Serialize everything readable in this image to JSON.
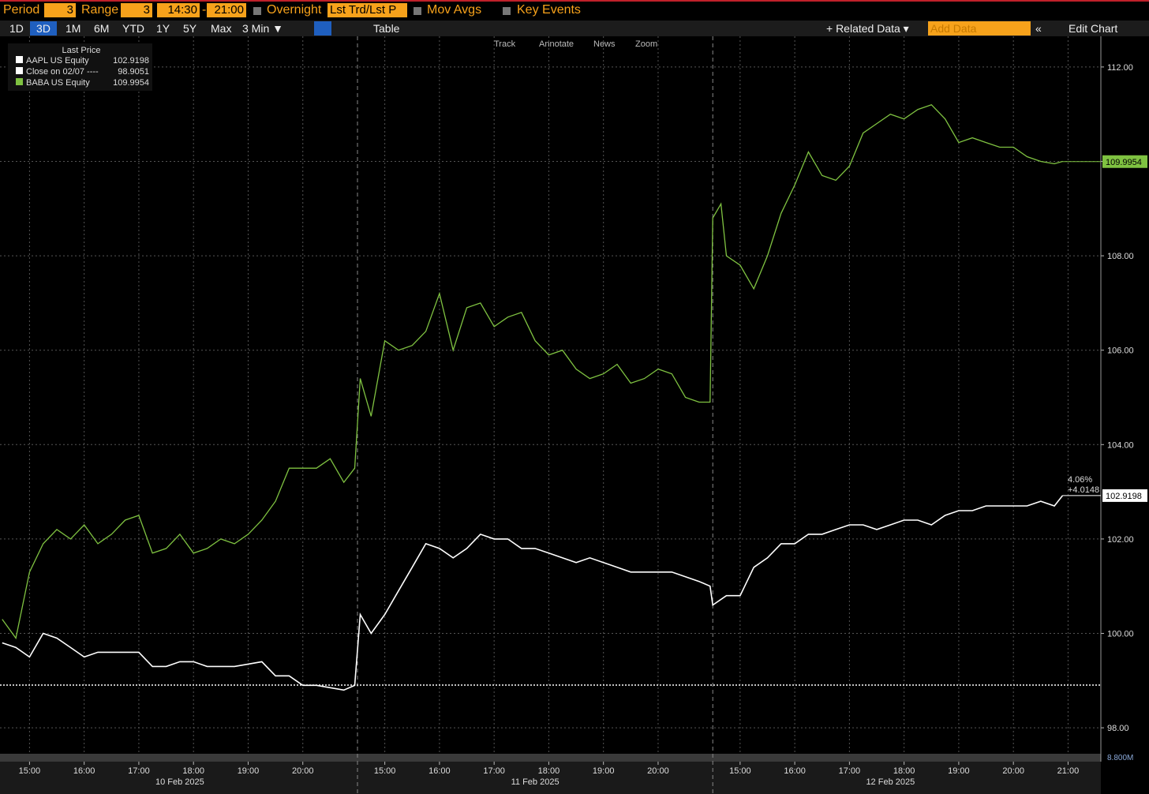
{
  "ui": {
    "period_label": "Period",
    "period_value": "3",
    "range_label": "Range",
    "range_value": "3",
    "time_from": "14:30",
    "time_sep": "-",
    "time_to": "21:00",
    "overnight": "Overnight",
    "price_mode": "Lst Trd/Lst P",
    "mov_avgs": "Mov Avgs",
    "key_events": "Key Events",
    "ranges": [
      "1D",
      "3D",
      "1M",
      "6M",
      "YTD",
      "1Y",
      "5Y",
      "Max"
    ],
    "interval": "3 Min ▼",
    "table": "Table",
    "related": "+ Related Data ▾",
    "add_data": "Add Data",
    "collapse": "«",
    "edit_chart": "Edit Chart",
    "tools": [
      "Track",
      "Annotate",
      "News",
      "Zoom"
    ],
    "legend_title": "Last Price"
  },
  "chart_data": {
    "type": "line",
    "xlim": [
      -0.04,
      20.1
    ],
    "ylim": [
      97.45,
      112.65
    ],
    "yticks": [
      {
        "value": 98,
        "label": "98.00"
      },
      {
        "value": 100,
        "label": "100.00"
      },
      {
        "value": 102,
        "label": "102.00"
      },
      {
        "value": 104,
        "label": "104.00"
      },
      {
        "value": 106,
        "label": "106.00"
      },
      {
        "value": 108,
        "label": "108.00"
      },
      {
        "value": 110,
        "label": "110.00"
      },
      {
        "value": 112,
        "label": "112.00"
      }
    ],
    "xticks": [
      {
        "value": 0.5,
        "label": "15:00"
      },
      {
        "value": 1.5,
        "label": "16:00"
      },
      {
        "value": 2.5,
        "label": "17:00"
      },
      {
        "value": 3.5,
        "label": "18:00"
      },
      {
        "value": 4.5,
        "label": "19:00"
      },
      {
        "value": 5.5,
        "label": "20:00"
      },
      {
        "value": 7,
        "label": "15:00"
      },
      {
        "value": 8,
        "label": "16:00"
      },
      {
        "value": 9,
        "label": "17:00"
      },
      {
        "value": 10,
        "label": "18:00"
      },
      {
        "value": 11,
        "label": "19:00"
      },
      {
        "value": 12,
        "label": "20:00"
      },
      {
        "value": 13.5,
        "label": "15:00"
      },
      {
        "value": 14.5,
        "label": "16:00"
      },
      {
        "value": 15.5,
        "label": "17:00"
      },
      {
        "value": 16.5,
        "label": "18:00"
      },
      {
        "value": 17.5,
        "label": "19:00"
      },
      {
        "value": 18.5,
        "label": "20:00"
      },
      {
        "value": 19.5,
        "label": "21:00"
      }
    ],
    "date_labels": [
      {
        "value": 3.25,
        "label": "10 Feb 2025"
      },
      {
        "value": 9.75,
        "label": "11 Feb 2025"
      },
      {
        "value": 16.25,
        "label": "12 Feb 2025"
      }
    ],
    "session_breaks": [
      6.5,
      13
    ],
    "grid": true,
    "series": [
      {
        "name": "AAPL US Equity",
        "color": "#ffffff",
        "last": 102.9198,
        "x": [
          0,
          0.25,
          0.5,
          0.75,
          1,
          1.25,
          1.5,
          1.75,
          2,
          2.25,
          2.5,
          2.75,
          3,
          3.25,
          3.5,
          3.75,
          4,
          4.25,
          4.5,
          4.75,
          5,
          5.25,
          5.5,
          5.75,
          6,
          6.25,
          6.45,
          6.55,
          6.75,
          7,
          7.25,
          7.5,
          7.75,
          8,
          8.25,
          8.5,
          8.75,
          9,
          9.25,
          9.5,
          9.75,
          10,
          10.25,
          10.5,
          10.75,
          11,
          11.25,
          11.5,
          11.75,
          12,
          12.25,
          12.5,
          12.75,
          12.95,
          13,
          13.25,
          13.5,
          13.75,
          14,
          14.25,
          14.5,
          14.75,
          15,
          15.25,
          15.5,
          15.75,
          16,
          16.25,
          16.5,
          16.75,
          17,
          17.25,
          17.5,
          17.75,
          18,
          18.25,
          18.5,
          18.75,
          19,
          19.25,
          19.4
        ],
        "values": [
          99.8,
          99.7,
          99.5,
          100,
          99.9,
          99.7,
          99.5,
          99.6,
          99.6,
          99.6,
          99.6,
          99.3,
          99.3,
          99.4,
          99.4,
          99.3,
          99.3,
          99.3,
          99.35,
          99.4,
          99.1,
          99.1,
          98.9,
          98.9,
          98.85,
          98.8,
          98.9,
          100.4,
          100,
          100.4,
          100.9,
          101.4,
          101.9,
          101.8,
          101.6,
          101.8,
          102.1,
          102,
          102,
          101.8,
          101.8,
          101.7,
          101.6,
          101.5,
          101.6,
          101.5,
          101.4,
          101.3,
          101.3,
          101.3,
          101.3,
          101.2,
          101.1,
          101,
          100.6,
          100.8,
          100.8,
          101.4,
          101.6,
          101.9,
          101.9,
          102.1,
          102.1,
          102.2,
          102.3,
          102.3,
          102.2,
          102.3,
          102.4,
          102.4,
          102.3,
          102.5,
          102.6,
          102.6,
          102.7,
          102.7,
          102.7,
          102.7,
          102.8,
          102.7,
          102.92
        ]
      },
      {
        "name": "BABA US Equity",
        "color": "#7fc241",
        "last": 109.9954,
        "x": [
          0,
          0.25,
          0.5,
          0.75,
          1,
          1.25,
          1.5,
          1.75,
          2,
          2.25,
          2.5,
          2.75,
          3,
          3.25,
          3.5,
          3.75,
          4,
          4.25,
          4.5,
          4.75,
          5,
          5.25,
          5.5,
          5.75,
          6,
          6.25,
          6.45,
          6.55,
          6.75,
          7,
          7.25,
          7.5,
          7.75,
          8,
          8.25,
          8.5,
          8.75,
          9,
          9.25,
          9.5,
          9.75,
          10,
          10.25,
          10.5,
          10.75,
          11,
          11.25,
          11.5,
          11.75,
          12,
          12.25,
          12.5,
          12.75,
          12.95,
          13,
          13.15,
          13.25,
          13.5,
          13.75,
          14,
          14.25,
          14.5,
          14.75,
          15,
          15.25,
          15.5,
          15.75,
          16,
          16.25,
          16.5,
          16.75,
          17,
          17.25,
          17.5,
          17.75,
          18,
          18.25,
          18.5,
          18.75,
          19,
          19.25,
          19.4
        ],
        "values": [
          100.3,
          99.9,
          101.3,
          101.9,
          102.2,
          102,
          102.3,
          101.9,
          102.1,
          102.4,
          102.5,
          101.7,
          101.8,
          102.1,
          101.7,
          101.8,
          102,
          101.9,
          102.1,
          102.4,
          102.8,
          103.5,
          103.5,
          103.5,
          103.7,
          103.2,
          103.5,
          105.4,
          104.6,
          106.2,
          106,
          106.1,
          106.4,
          107.2,
          106,
          106.9,
          107,
          106.5,
          106.7,
          106.8,
          106.2,
          105.9,
          106,
          105.6,
          105.4,
          105.5,
          105.7,
          105.3,
          105.4,
          105.6,
          105.5,
          105,
          104.9,
          104.9,
          108.8,
          109.1,
          108,
          107.8,
          107.3,
          108,
          108.9,
          109.5,
          110.2,
          109.7,
          109.6,
          109.9,
          110.6,
          110.8,
          111,
          110.9,
          111.1,
          111.2,
          110.9,
          110.4,
          110.5,
          110.4,
          110.3,
          110.3,
          110.1,
          110,
          109.95,
          110
        ]
      }
    ],
    "reference_line": {
      "name": "Close on 02/07 ----",
      "value": 98.9051,
      "color": "#ffffff"
    },
    "annotations": [
      "4.06%",
      "+4.0148"
    ],
    "volume_label": "8.800M"
  }
}
